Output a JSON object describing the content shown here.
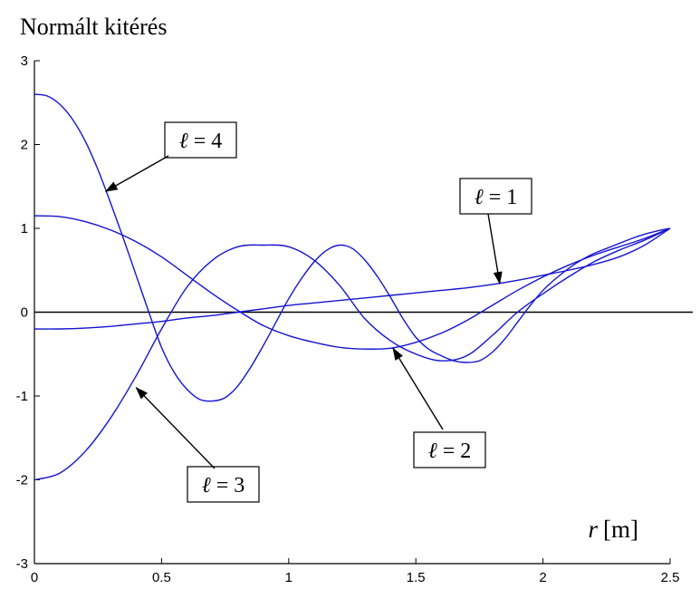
{
  "chart_data": {
    "type": "line",
    "title": "Normált kitérés",
    "xlabel": "r [m]",
    "xlabel_var": "r",
    "xlabel_unit": "[m]",
    "ylabel": "",
    "xlim": [
      0,
      2.5
    ],
    "ylim": [
      -3,
      3
    ],
    "x_ticks": [
      "0",
      "0.5",
      "1",
      "1.5",
      "2",
      "2.5"
    ],
    "y_ticks": [
      "3",
      "2",
      "1",
      "0",
      "-1",
      "-2",
      "-3"
    ],
    "grid": false,
    "zero_line": true,
    "line_color": "#1414d2",
    "series": [
      {
        "name": "ℓ = 1",
        "x": [
          0,
          0.1,
          0.2,
          0.3,
          0.4,
          0.5,
          0.6,
          0.7,
          0.8,
          0.9,
          1.0,
          1.1,
          1.2,
          1.3,
          1.4,
          1.5,
          1.6,
          1.7,
          1.8,
          1.9,
          2.0,
          2.1,
          2.2,
          2.3,
          2.4,
          2.5
        ],
        "values": [
          -0.2,
          -0.2,
          -0.19,
          -0.17,
          -0.14,
          -0.11,
          -0.07,
          -0.04,
          0.0,
          0.04,
          0.08,
          0.11,
          0.14,
          0.17,
          0.2,
          0.23,
          0.26,
          0.29,
          0.33,
          0.38,
          0.44,
          0.5,
          0.57,
          0.66,
          0.8,
          1.0
        ]
      },
      {
        "name": "ℓ = 2",
        "x": [
          0,
          0.1,
          0.2,
          0.3,
          0.4,
          0.5,
          0.6,
          0.7,
          0.8,
          0.9,
          1.0,
          1.1,
          1.2,
          1.3,
          1.4,
          1.5,
          1.6,
          1.7,
          1.8,
          1.9,
          2.0,
          2.1,
          2.2,
          2.3,
          2.4,
          2.5
        ],
        "values": [
          1.15,
          1.14,
          1.08,
          0.98,
          0.84,
          0.66,
          0.44,
          0.22,
          0.02,
          -0.16,
          -0.28,
          -0.36,
          -0.42,
          -0.44,
          -0.43,
          -0.36,
          -0.25,
          -0.1,
          0.08,
          0.26,
          0.42,
          0.56,
          0.68,
          0.78,
          0.88,
          1.0
        ]
      },
      {
        "name": "ℓ = 3",
        "x": [
          0,
          0.1,
          0.2,
          0.3,
          0.4,
          0.5,
          0.6,
          0.7,
          0.8,
          0.9,
          1.0,
          1.1,
          1.2,
          1.3,
          1.4,
          1.5,
          1.6,
          1.7,
          1.8,
          1.9,
          2.0,
          2.1,
          2.2,
          2.3,
          2.4,
          2.5
        ],
        "values": [
          -2.0,
          -1.92,
          -1.66,
          -1.26,
          -0.76,
          -0.2,
          0.3,
          0.62,
          0.78,
          0.8,
          0.78,
          0.62,
          0.32,
          -0.08,
          -0.34,
          -0.5,
          -0.58,
          -0.52,
          -0.28,
          0.0,
          0.22,
          0.42,
          0.6,
          0.74,
          0.86,
          1.0
        ]
      },
      {
        "name": "ℓ = 4",
        "x": [
          0,
          0.05,
          0.1,
          0.15,
          0.2,
          0.25,
          0.3,
          0.35,
          0.4,
          0.45,
          0.5,
          0.55,
          0.6,
          0.65,
          0.7,
          0.75,
          0.8,
          0.85,
          0.9,
          0.95,
          1.0,
          1.05,
          1.1,
          1.15,
          1.2,
          1.25,
          1.3,
          1.35,
          1.4,
          1.45,
          1.5,
          1.55,
          1.6,
          1.65,
          1.7,
          1.75,
          1.8,
          1.85,
          1.9,
          1.95,
          2.0,
          2.05,
          2.1,
          2.15,
          2.2,
          2.25,
          2.3,
          2.35,
          2.4,
          2.45,
          2.5
        ],
        "values": [
          2.6,
          2.58,
          2.48,
          2.3,
          2.04,
          1.7,
          1.3,
          0.88,
          0.44,
          0.0,
          -0.42,
          -0.72,
          -0.92,
          -1.04,
          -1.06,
          -1.02,
          -0.88,
          -0.66,
          -0.4,
          -0.12,
          0.16,
          0.4,
          0.6,
          0.74,
          0.8,
          0.76,
          0.62,
          0.42,
          0.18,
          -0.08,
          -0.3,
          -0.44,
          -0.52,
          -0.58,
          -0.6,
          -0.58,
          -0.48,
          -0.32,
          -0.12,
          0.08,
          0.26,
          0.4,
          0.52,
          0.62,
          0.7,
          0.76,
          0.82,
          0.88,
          0.93,
          0.97,
          1.0
        ]
      }
    ],
    "annotations": [
      {
        "text_var": "ℓ",
        "text_rest": " = 4",
        "series": "ℓ = 4",
        "arrow_to": [
          0.28,
          1.44
        ]
      },
      {
        "text_var": "ℓ",
        "text_rest": " = 1",
        "series": "ℓ = 1",
        "arrow_to": [
          1.83,
          0.34
        ]
      },
      {
        "text_var": "ℓ",
        "text_rest": " = 2",
        "series": "ℓ = 2",
        "arrow_to": [
          1.41,
          -0.43
        ]
      },
      {
        "text_var": "ℓ",
        "text_rest": " = 3",
        "series": "ℓ = 3",
        "arrow_to": [
          0.4,
          -0.9
        ]
      }
    ]
  }
}
